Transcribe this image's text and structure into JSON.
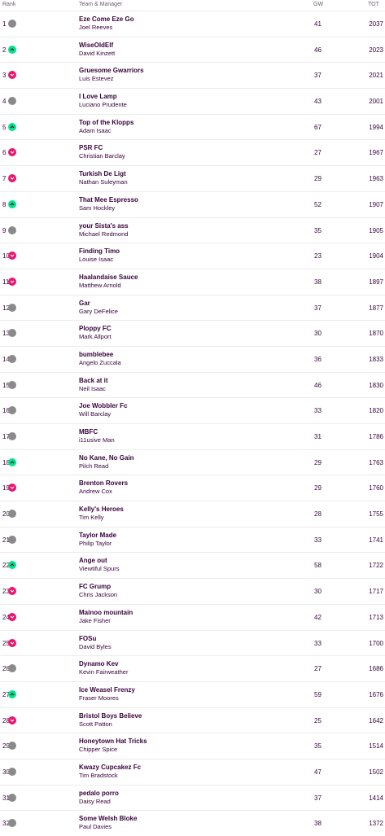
{
  "header": {
    "rank": "Rank",
    "team_manager": "Team & Manager",
    "gw": "GW",
    "tot": "TOT"
  },
  "colors": {
    "up": "#00e38a",
    "down": "#e8166f",
    "same": "#8a8a8a",
    "text": "#37003c"
  },
  "rows": [
    {
      "rank": "1",
      "movement": "same",
      "team": "Eze Come Eze Go",
      "manager": "Joel Reeves",
      "gw": "41",
      "tot": "2037"
    },
    {
      "rank": "2",
      "movement": "up",
      "team": "WiseOldElf",
      "manager": "David Kinzett",
      "gw": "46",
      "tot": "2023"
    },
    {
      "rank": "3",
      "movement": "down",
      "team": "Gruesome Gwarriors",
      "manager": "Luis Estevez",
      "gw": "37",
      "tot": "2021"
    },
    {
      "rank": "4",
      "movement": "same",
      "team": "I Love Lamp",
      "manager": "Luciano Prudente",
      "gw": "43",
      "tot": "2001"
    },
    {
      "rank": "5",
      "movement": "up",
      "team": "Top of the Klopps",
      "manager": "Adam Isaac",
      "gw": "67",
      "tot": "1994"
    },
    {
      "rank": "6",
      "movement": "down",
      "team": "PSR FC",
      "manager": "Christian Barclay",
      "gw": "27",
      "tot": "1967"
    },
    {
      "rank": "7",
      "movement": "down",
      "team": "Turkish De Ligt",
      "manager": "Nathan Suleyman",
      "gw": "29",
      "tot": "1963"
    },
    {
      "rank": "8",
      "movement": "up",
      "team": "That Mee Espresso",
      "manager": "Sam Hockley",
      "gw": "52",
      "tot": "1907"
    },
    {
      "rank": "9",
      "movement": "same",
      "team": "your Sista's ass",
      "manager": "Michael Redmond",
      "gw": "35",
      "tot": "1905"
    },
    {
      "rank": "10",
      "movement": "down",
      "team": "Finding Timo",
      "manager": "Louise Isaac",
      "gw": "23",
      "tot": "1904"
    },
    {
      "rank": "11",
      "movement": "down",
      "team": "Haalandaise Sauce",
      "manager": "Matthew Arnold",
      "gw": "38",
      "tot": "1897"
    },
    {
      "rank": "12",
      "movement": "same",
      "team": "Gar",
      "manager": "Gary DeFelice",
      "gw": "37",
      "tot": "1877"
    },
    {
      "rank": "13",
      "movement": "same",
      "team": "Ploppy FC",
      "manager": "Mark Allport",
      "gw": "30",
      "tot": "1870"
    },
    {
      "rank": "14",
      "movement": "same",
      "team": "bumblebee",
      "manager": "Angelo Zuccala",
      "gw": "36",
      "tot": "1833"
    },
    {
      "rank": "15",
      "movement": "same",
      "team": "Back at it",
      "manager": "Neil Isaac",
      "gw": "46",
      "tot": "1830"
    },
    {
      "rank": "16",
      "movement": "same",
      "team": "Joe Wobbler Fc",
      "manager": "Will Barclay",
      "gw": "33",
      "tot": "1820"
    },
    {
      "rank": "17",
      "movement": "same",
      "team": "MBFC",
      "manager": "i11usive Man",
      "gw": "31",
      "tot": "1786"
    },
    {
      "rank": "18",
      "movement": "up",
      "team": "No Kane, No Gain",
      "manager": "Pilch Read",
      "gw": "29",
      "tot": "1763"
    },
    {
      "rank": "19",
      "movement": "down",
      "team": "Brenton Rovers",
      "manager": "Andrew Cox",
      "gw": "29",
      "tot": "1760"
    },
    {
      "rank": "20",
      "movement": "same",
      "team": "Kelly's Heroes",
      "manager": "Tim Kelly",
      "gw": "28",
      "tot": "1755"
    },
    {
      "rank": "21",
      "movement": "same",
      "team": "Taylor Made",
      "manager": "Philip Taylor",
      "gw": "33",
      "tot": "1741"
    },
    {
      "rank": "22",
      "movement": "up",
      "team": "Ange out",
      "manager": "Viewtiful Spurs",
      "gw": "58",
      "tot": "1722"
    },
    {
      "rank": "23",
      "movement": "down",
      "team": "FC Grump",
      "manager": "Chris Jackson",
      "gw": "30",
      "tot": "1717"
    },
    {
      "rank": "24",
      "movement": "down",
      "team": "Mainoo mountain",
      "manager": "Jake Fisher",
      "gw": "42",
      "tot": "1713"
    },
    {
      "rank": "25",
      "movement": "down",
      "team": "FOSu",
      "manager": "David Byles",
      "gw": "33",
      "tot": "1700"
    },
    {
      "rank": "26",
      "movement": "same",
      "team": "Dynamo Kev",
      "manager": "Kevin Fairweather",
      "gw": "27",
      "tot": "1686"
    },
    {
      "rank": "27",
      "movement": "up",
      "team": "Ice Weasel Frenzy",
      "manager": "Fraser Moores",
      "gw": "59",
      "tot": "1676"
    },
    {
      "rank": "28",
      "movement": "down",
      "team": "Bristol Boys Believe",
      "manager": "Scott Patton",
      "gw": "25",
      "tot": "1642"
    },
    {
      "rank": "29",
      "movement": "same",
      "team": "Honeytown Hat Tricks",
      "manager": "Chipper Spice",
      "gw": "35",
      "tot": "1514"
    },
    {
      "rank": "30",
      "movement": "same",
      "team": "Kwazy Cupcakez Fc",
      "manager": "Tim Bradstock",
      "gw": "47",
      "tot": "1502"
    },
    {
      "rank": "31",
      "movement": "same",
      "team": "pedalo porro",
      "manager": "Daisy Read",
      "gw": "37",
      "tot": "1414"
    },
    {
      "rank": "32",
      "movement": "same",
      "team": "Some Welsh Bloke",
      "manager": "Paul Davies",
      "gw": "38",
      "tot": "1372"
    }
  ]
}
